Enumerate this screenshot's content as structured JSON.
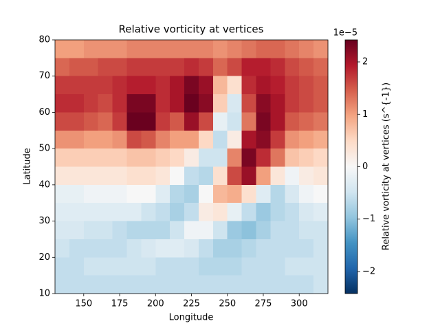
{
  "chart_data": {
    "type": "heatmap",
    "title": "Relative vorticity at vertices",
    "xlabel": "Longitude",
    "ylabel": "Latitude",
    "colorbar_label": "Relative vorticity at vertices (s^{-1})",
    "colorbar_offset": "1e−5",
    "colormap": "RdBu_r",
    "x": [
      135,
      145,
      155,
      165,
      175,
      185,
      195,
      205,
      215,
      225,
      235,
      245,
      255,
      265,
      275,
      285,
      295,
      305,
      315
    ],
    "y": [
      77.5,
      72.5,
      67.5,
      62.5,
      57.5,
      52.5,
      47.5,
      42.5,
      37.5,
      32.5,
      27.5,
      22.5,
      17.5,
      12.5
    ],
    "values": [
      [
        1.0,
        1.0,
        1.1,
        1.1,
        1.1,
        1.2,
        1.2,
        1.2,
        1.2,
        1.2,
        1.2,
        1.1,
        1.2,
        1.3,
        1.4,
        1.4,
        1.3,
        1.2,
        1.1
      ],
      [
        1.4,
        1.5,
        1.5,
        1.6,
        1.6,
        1.7,
        1.7,
        1.7,
        1.7,
        1.8,
        1.7,
        1.4,
        1.6,
        1.9,
        1.9,
        1.8,
        1.6,
        1.5,
        1.4
      ],
      [
        1.7,
        1.7,
        1.7,
        1.7,
        1.8,
        1.9,
        1.9,
        1.8,
        2.0,
        2.3,
        2.1,
        0.8,
        0.4,
        1.8,
        2.0,
        1.9,
        1.7,
        1.6,
        1.5
      ],
      [
        1.8,
        1.8,
        1.7,
        1.6,
        1.8,
        2.3,
        2.3,
        1.8,
        2.0,
        2.4,
        2.2,
        0.6,
        -0.4,
        1.6,
        2.2,
        2.0,
        1.7,
        1.6,
        1.5
      ],
      [
        1.6,
        1.6,
        1.5,
        1.4,
        1.7,
        2.4,
        2.4,
        1.7,
        1.5,
        2.1,
        1.6,
        -0.2,
        -0.5,
        1.3,
        2.3,
        2.0,
        1.5,
        1.4,
        1.3
      ],
      [
        1.1,
        1.1,
        1.0,
        1.0,
        1.1,
        1.6,
        1.5,
        1.2,
        1.0,
        1.0,
        0.5,
        -0.6,
        0.2,
        2.0,
        2.2,
        1.7,
        1.1,
        1.0,
        0.9
      ],
      [
        0.6,
        0.6,
        0.6,
        0.6,
        0.6,
        0.7,
        0.7,
        0.6,
        0.5,
        0.2,
        -0.5,
        -0.5,
        1.2,
        2.3,
        1.8,
        1.3,
        0.7,
        0.6,
        0.5
      ],
      [
        0.3,
        0.3,
        0.3,
        0.3,
        0.3,
        0.4,
        0.4,
        0.3,
        0.0,
        -0.6,
        -0.7,
        0.4,
        1.6,
        2.1,
        1.0,
        0.3,
        -0.1,
        0.2,
        0.3
      ],
      [
        -0.2,
        -0.2,
        -0.1,
        -0.1,
        -0.1,
        0.0,
        0.0,
        -0.3,
        -0.7,
        -0.8,
        0.0,
        0.8,
        0.9,
        0.4,
        -0.3,
        -0.7,
        -0.4,
        -0.1,
        0.0
      ],
      [
        -0.3,
        -0.3,
        -0.3,
        -0.3,
        -0.3,
        -0.3,
        -0.5,
        -0.6,
        -0.8,
        -0.6,
        0.2,
        0.3,
        -0.2,
        -0.6,
        -0.9,
        -0.7,
        -0.6,
        -0.4,
        -0.3
      ],
      [
        -0.4,
        -0.4,
        -0.5,
        -0.5,
        -0.6,
        -0.7,
        -0.7,
        -0.7,
        -0.5,
        -0.1,
        -0.1,
        -0.5,
        -0.9,
        -1.0,
        -0.8,
        -0.6,
        -0.6,
        -0.5,
        -0.5
      ],
      [
        -0.5,
        -0.6,
        -0.6,
        -0.6,
        -0.6,
        -0.5,
        -0.4,
        -0.3,
        -0.3,
        -0.4,
        -0.6,
        -0.8,
        -0.8,
        -0.7,
        -0.6,
        -0.6,
        -0.6,
        -0.6,
        -0.5
      ],
      [
        -0.6,
        -0.6,
        -0.5,
        -0.5,
        -0.5,
        -0.5,
        -0.5,
        -0.6,
        -0.6,
        -0.6,
        -0.7,
        -0.7,
        -0.7,
        -0.6,
        -0.6,
        -0.6,
        -0.5,
        -0.5,
        -0.5
      ],
      [
        -0.6,
        -0.6,
        -0.6,
        -0.6,
        -0.6,
        -0.6,
        -0.6,
        -0.6,
        -0.6,
        -0.6,
        -0.6,
        -0.6,
        -0.6,
        -0.6,
        -0.6,
        -0.6,
        -0.6,
        -0.6,
        -0.5
      ]
    ],
    "xlim": [
      130,
      320
    ],
    "xticks": [
      150,
      175,
      200,
      225,
      250,
      275,
      300
    ],
    "ylim": [
      10,
      80
    ],
    "yticks": [
      10,
      20,
      30,
      40,
      50,
      60,
      70,
      80
    ],
    "clim": [
      -2.42,
      2.42
    ],
    "cticks": [
      {
        "value": -2,
        "label": "−2"
      },
      {
        "value": -1,
        "label": "−1"
      },
      0,
      1,
      2
    ]
  }
}
